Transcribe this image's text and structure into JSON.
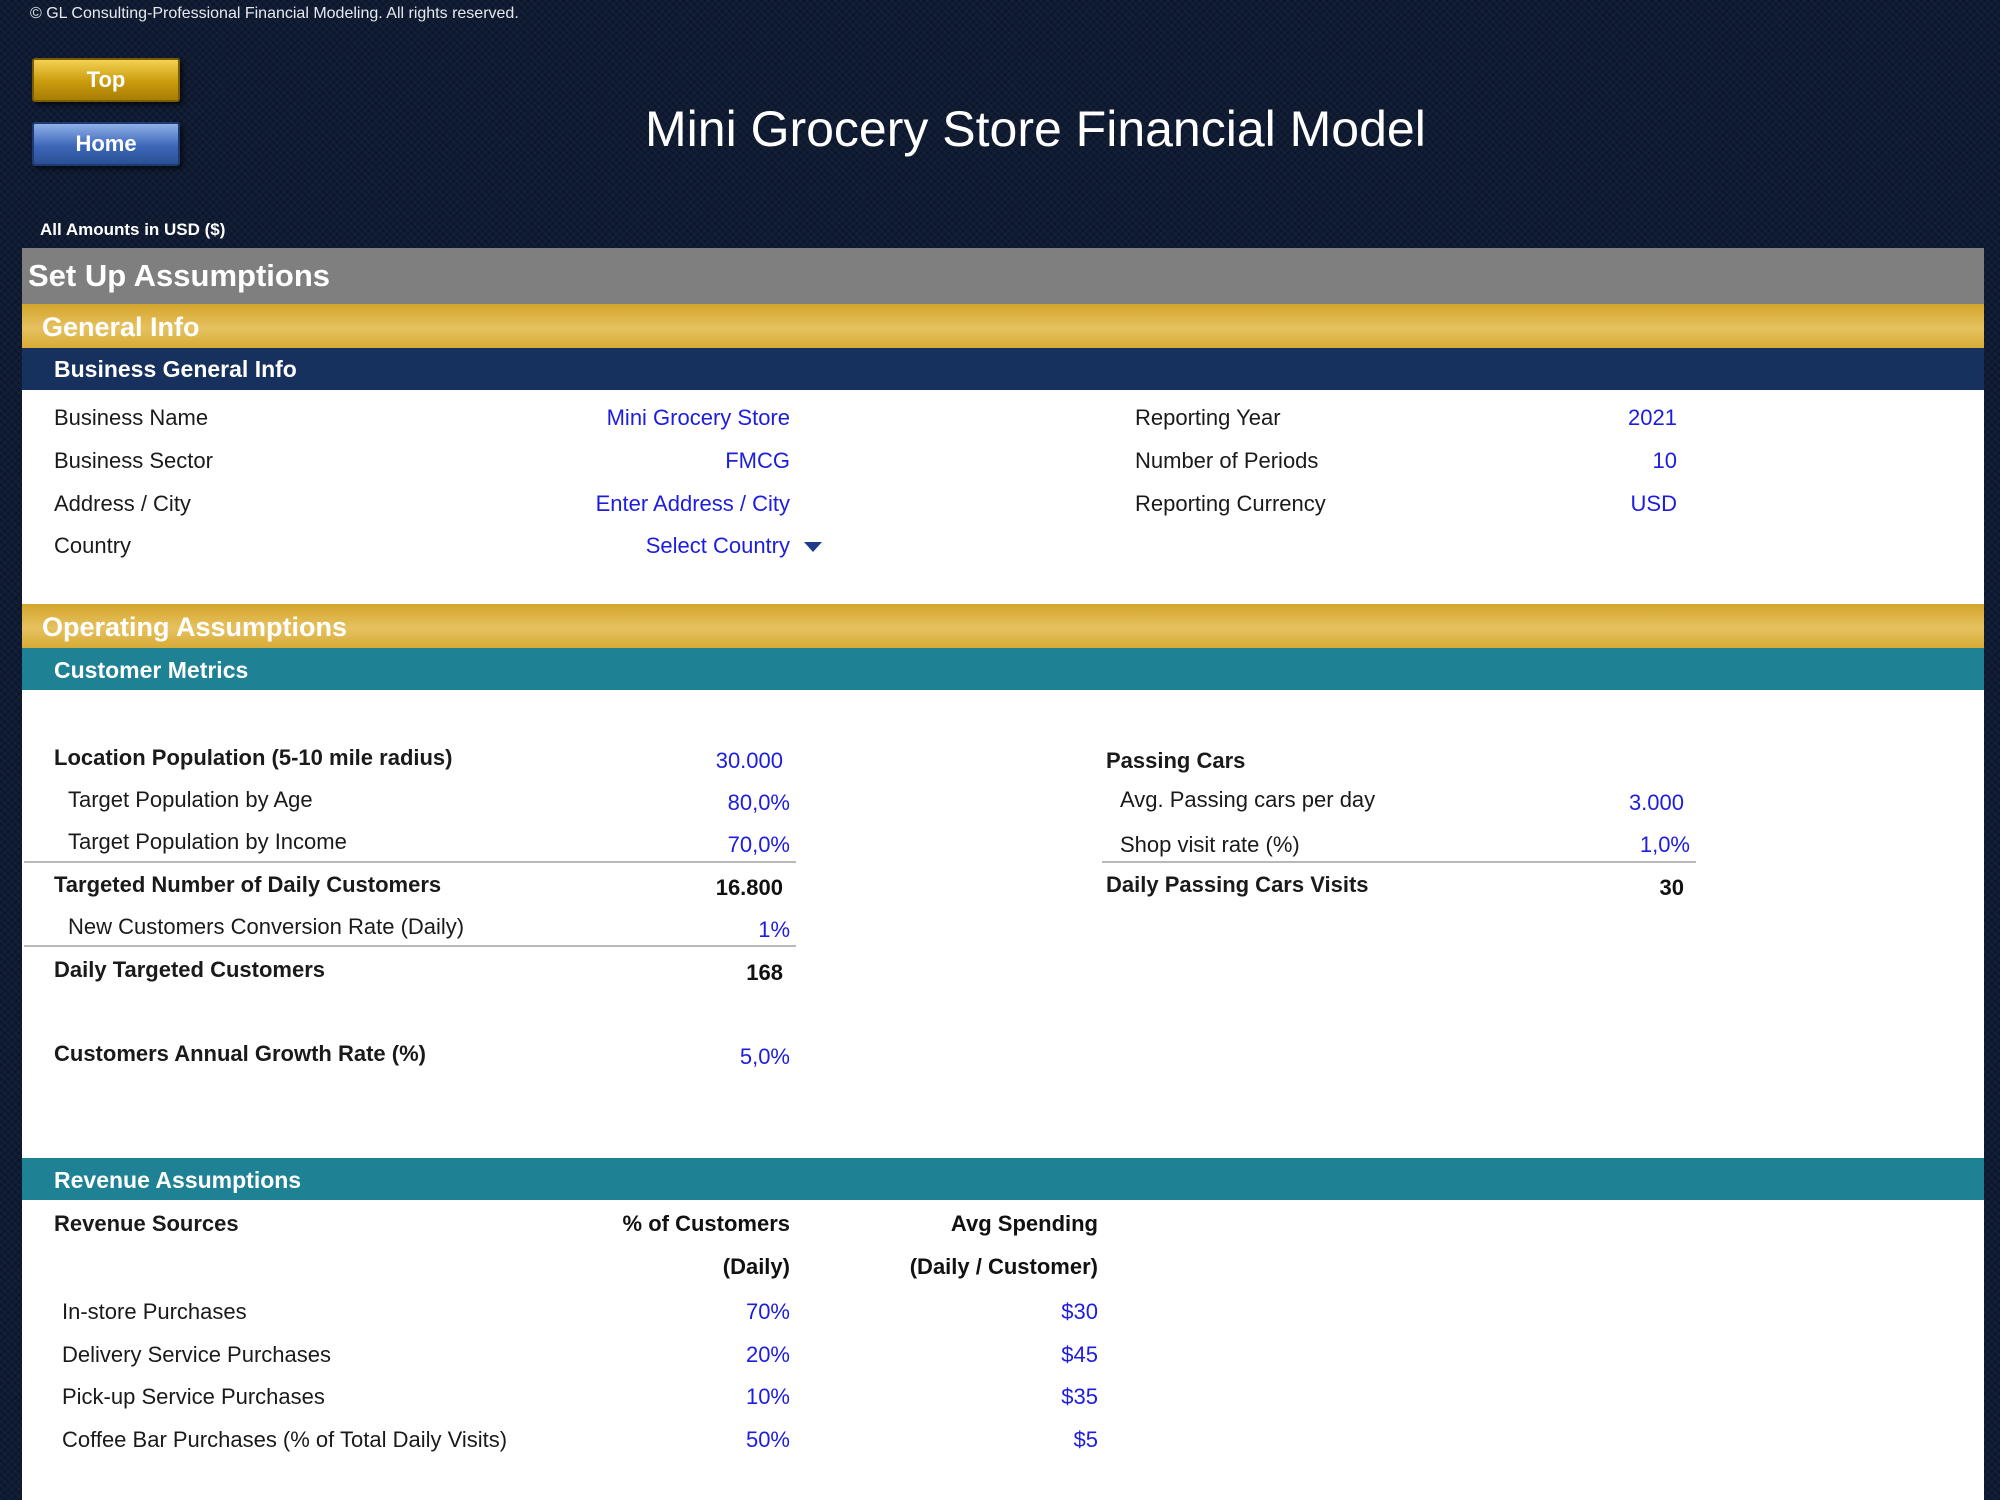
{
  "copyright": "© GL Consulting-Professional Financial Modeling. All rights reserved.",
  "nav": {
    "top_label": "Top",
    "home_label": "Home"
  },
  "title": "Mini Grocery Store Financial Model",
  "amounts_note": "All Amounts in  USD ($)",
  "setup_band": "Set Up Assumptions",
  "general": {
    "band": "General Info",
    "subband": "Business General Info",
    "left": [
      {
        "label": "Business Name",
        "value": "Mini Grocery Store"
      },
      {
        "label": "Business Sector",
        "value": "FMCG"
      },
      {
        "label": "Address / City",
        "value": "Enter Address / City"
      },
      {
        "label": "Country",
        "value": "Select Country"
      }
    ],
    "right": [
      {
        "label": "Reporting Year",
        "value": "2021"
      },
      {
        "label": "Number of Periods",
        "value": "10"
      },
      {
        "label": "Reporting Currency",
        "value": "USD"
      }
    ]
  },
  "operating": {
    "band": "Operating Assumptions",
    "subband": "Customer Metrics",
    "left": [
      {
        "label": "Location Population (5-10 mile radius)",
        "value": "30.000"
      },
      {
        "label": "Target Population by Age",
        "value": "80,0%"
      },
      {
        "label": "Target Population by Income",
        "value": "70,0%"
      },
      {
        "label": "Targeted Number of Daily Customers",
        "value": "16.800"
      },
      {
        "label": "New Customers Conversion Rate (Daily)",
        "value": "1%"
      },
      {
        "label": "Daily Targeted Customers",
        "value": "168"
      },
      {
        "label": "Customers Annual Growth Rate (%)",
        "value": "5,0%"
      }
    ],
    "right": [
      {
        "label": "Passing Cars",
        "value": ""
      },
      {
        "label": "Avg. Passing cars per day",
        "value": "3.000"
      },
      {
        "label": "Shop visit rate (%)",
        "value": "1,0%"
      },
      {
        "label": "Daily Passing Cars Visits",
        "value": "30"
      }
    ]
  },
  "revenue": {
    "subband": "Revenue Assumptions",
    "col_sources": "Revenue Sources",
    "col_pct_1": "% of Customers",
    "col_pct_2": "(Daily)",
    "col_avg_1": "Avg Spending",
    "col_avg_2": "(Daily / Customer)",
    "rows": [
      {
        "label": "In-store Purchases",
        "pct": "70%",
        "avg": "$30"
      },
      {
        "label": "Delivery Service Purchases",
        "pct": "20%",
        "avg": "$45"
      },
      {
        "label": "Pick-up Service Purchases",
        "pct": "10%",
        "avg": "$35"
      },
      {
        "label": "Coffee Bar Purchases (% of Total Daily Visits)",
        "pct": "50%",
        "avg": "$5"
      }
    ]
  }
}
